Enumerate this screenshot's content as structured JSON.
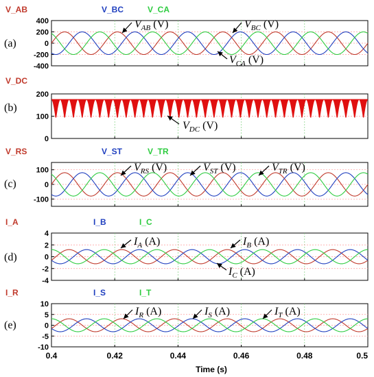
{
  "xlabel": "Time (s)",
  "x_ticks": [
    "0.4",
    "0.42",
    "0.44",
    "0.46",
    "0.48",
    "0.5"
  ],
  "colors": {
    "red": "#c0392b",
    "blue": "#1f3fbf",
    "green": "#2ecc40",
    "dc": "#e01010",
    "grid_red": "#ff9a9a",
    "grid_green": "#7fd07f"
  },
  "chart_data": [
    {
      "type": "line",
      "panel_label": "(a)",
      "legend": [
        "V_AB",
        "V_BC",
        "V_CA"
      ],
      "yticks": [
        "400",
        "200",
        "0",
        "-200",
        "-400"
      ],
      "ylim": [
        -400,
        400
      ],
      "xlim": [
        0.4,
        0.5
      ],
      "series": [
        {
          "name": "V_AB",
          "amplitude": 200,
          "phase_deg": 0,
          "frequency_hz": 60,
          "color": "red"
        },
        {
          "name": "V_BC",
          "amplitude": 200,
          "phase_deg": -120,
          "frequency_hz": 60,
          "color": "blue"
        },
        {
          "name": "V_CA",
          "amplitude": 200,
          "phase_deg": 120,
          "frequency_hz": 60,
          "color": "green"
        }
      ],
      "annotations": [
        {
          "main": "V",
          "sub": "AB",
          "unit": " (V)"
        },
        {
          "main": "V",
          "sub": "BC",
          "unit": " (V)"
        },
        {
          "main": "V",
          "sub": "CA",
          "unit": " (V)"
        }
      ]
    },
    {
      "type": "line",
      "panel_label": "(b)",
      "legend": [
        "V_DC"
      ],
      "yticks": [
        "200",
        "100",
        "0"
      ],
      "ylim": [
        0,
        200
      ],
      "xlim": [
        0.4,
        0.5
      ],
      "series": [
        {
          "name": "V_DC",
          "ripple_min": 90,
          "ripple_max": 175,
          "ripple_frequency_hz": 360,
          "color": "dc"
        }
      ],
      "annotations": [
        {
          "main": "V",
          "sub": "DC",
          "unit": " (V)"
        }
      ]
    },
    {
      "type": "line",
      "panel_label": "(c)",
      "legend": [
        "V_RS",
        "V_ST",
        "V_TR"
      ],
      "yticks": [
        "100",
        "0",
        "-100"
      ],
      "ylim": [
        -150,
        150
      ],
      "xlim": [
        0.4,
        0.5
      ],
      "series": [
        {
          "name": "V_RS",
          "amplitude": 80,
          "phase_deg": 0,
          "frequency_hz": 60,
          "color": "red"
        },
        {
          "name": "V_ST",
          "amplitude": 80,
          "phase_deg": -120,
          "frequency_hz": 60,
          "color": "blue"
        },
        {
          "name": "V_TR",
          "amplitude": 80,
          "phase_deg": 120,
          "frequency_hz": 60,
          "color": "green"
        }
      ],
      "annotations": [
        {
          "main": "V",
          "sub": "RS",
          "unit": " (V)"
        },
        {
          "main": "V",
          "sub": "ST",
          "unit": " (V)"
        },
        {
          "main": "V",
          "sub": "TR",
          "unit": " (V)"
        }
      ]
    },
    {
      "type": "line",
      "panel_label": "(d)",
      "legend": [
        "I_A",
        "I_B",
        "I_C"
      ],
      "yticks": [
        "4",
        "2",
        "0",
        "-2",
        "-4"
      ],
      "ylim": [
        -4,
        4
      ],
      "xlim": [
        0.4,
        0.5
      ],
      "series": [
        {
          "name": "I_A",
          "amplitude": 1.2,
          "phase_deg": -30,
          "frequency_hz": 60,
          "color": "red"
        },
        {
          "name": "I_B",
          "amplitude": 1.2,
          "phase_deg": -150,
          "frequency_hz": 60,
          "color": "blue"
        },
        {
          "name": "I_C",
          "amplitude": 1.2,
          "phase_deg": 90,
          "frequency_hz": 60,
          "color": "green"
        }
      ],
      "annotations": [
        {
          "main": "I",
          "sub": "A",
          "unit": " (A)"
        },
        {
          "main": "I",
          "sub": "B",
          "unit": " (A)"
        },
        {
          "main": "I",
          "sub": "C",
          "unit": " (A)"
        }
      ]
    },
    {
      "type": "line",
      "panel_label": "(e)",
      "legend": [
        "I_R",
        "I_S",
        "I_T"
      ],
      "yticks": [
        "10",
        "5",
        "0",
        "-5",
        "-10"
      ],
      "ylim": [
        -10,
        10
      ],
      "xlim": [
        0.4,
        0.5
      ],
      "series": [
        {
          "name": "I_R",
          "amplitude": 3,
          "phase_deg": -30,
          "frequency_hz": 60,
          "color": "red"
        },
        {
          "name": "I_S",
          "amplitude": 3,
          "phase_deg": -150,
          "frequency_hz": 60,
          "color": "blue"
        },
        {
          "name": "I_T",
          "amplitude": 3,
          "phase_deg": 90,
          "frequency_hz": 60,
          "color": "green"
        }
      ],
      "annotations": [
        {
          "main": "I",
          "sub": "R",
          "unit": " (A)"
        },
        {
          "main": "I",
          "sub": "S",
          "unit": " (A)"
        },
        {
          "main": "I",
          "sub": "T",
          "unit": " (A)"
        }
      ]
    }
  ]
}
